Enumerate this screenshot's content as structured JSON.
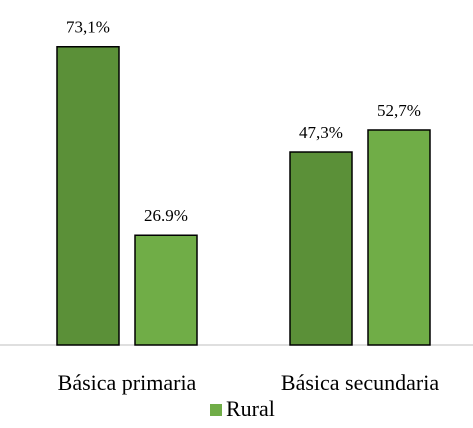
{
  "chart_data": {
    "type": "bar",
    "categories": [
      "Básica primaria",
      "Básica secundaria"
    ],
    "series": [
      {
        "color": "#5b9038",
        "values": [
          73.1,
          47.3
        ],
        "value_labels": [
          "73,1%",
          "47,3%"
        ]
      },
      {
        "name": "Rural",
        "color": "#70ad47",
        "values": [
          26.9,
          52.7
        ],
        "value_labels": [
          "26.9%",
          "52,7%"
        ]
      }
    ]
  }
}
